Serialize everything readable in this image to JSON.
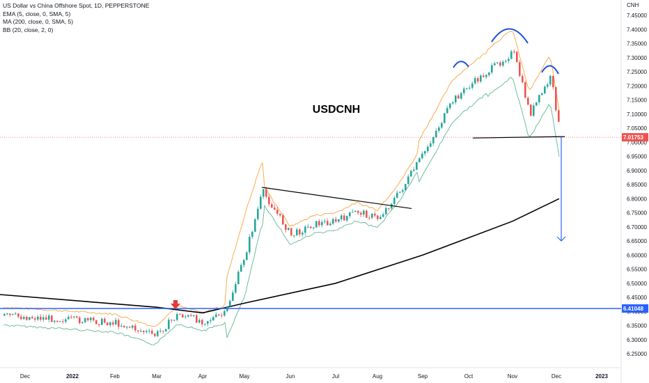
{
  "legend": {
    "title": "US Dollar vs China Offshore Spot, 1D, PEPPERSTONE",
    "lines": [
      "EMA (5, close, 0, SMA, 5)",
      "MA (200, close, 0, SMA, 5)",
      "BB (20, close, 2, 0)"
    ]
  },
  "chart_data": {
    "type": "candlestick",
    "title": "USDCNH",
    "currency": "CNH",
    "y_ticks": [
      "7.45000",
      "7.40000",
      "7.35000",
      "7.30000",
      "7.25000",
      "7.20000",
      "7.15000",
      "7.10000",
      "7.05000",
      "7.00000",
      "6.95000",
      "6.90000",
      "6.85000",
      "6.80000",
      "6.75000",
      "6.70000",
      "6.65000",
      "6.60000",
      "6.55000",
      "6.50000",
      "6.45000",
      "6.40000",
      "6.35000",
      "6.30000",
      "6.25000"
    ],
    "x_ticks": [
      "Dec",
      "2022",
      "Feb",
      "Mar",
      "Apr",
      "May",
      "Jun",
      "Jul",
      "Aug",
      "Sep",
      "Oct",
      "Nov",
      "Dec",
      "2023"
    ],
    "ylim": [
      6.225,
      7.475
    ],
    "last_price": "7.01753",
    "support_level": "6.41048",
    "close_path": [
      [
        "Dec",
        6.385
      ],
      [
        "2022",
        6.37
      ],
      [
        "Feb",
        6.36
      ],
      [
        "Mar",
        6.315
      ],
      [
        "Mar",
        6.39
      ],
      [
        "Apr",
        6.365
      ],
      [
        "Apr",
        6.39
      ],
      [
        "May",
        6.61
      ],
      [
        "May",
        6.825
      ],
      [
        "Jun",
        6.67
      ],
      [
        "Jun",
        6.71
      ],
      [
        "Jul",
        6.72
      ],
      [
        "Jul",
        6.755
      ],
      [
        "Aug",
        6.73
      ],
      [
        "Aug",
        6.83
      ],
      [
        "Sep",
        6.96
      ],
      [
        "Oct",
        7.15
      ],
      [
        "Oct",
        7.2
      ],
      [
        "Nov",
        7.32
      ],
      [
        "Nov",
        7.1
      ],
      [
        "Dec",
        7.23
      ],
      [
        "Dec",
        7.02
      ]
    ],
    "ma200": [
      [
        "Dec",
        6.46
      ],
      [
        "Mar",
        6.415
      ],
      [
        "Apr",
        6.395
      ],
      [
        "May",
        6.43
      ],
      [
        "Jul",
        6.5
      ],
      [
        "Sep",
        6.6
      ],
      [
        "Nov",
        6.72
      ],
      [
        "Dec",
        6.8
      ]
    ],
    "annotations": {
      "projection_target": 6.65,
      "neckline": [
        7.015,
        7.02
      ],
      "triangle_top": [
        6.84,
        6.765
      ]
    },
    "series": [
      {
        "name": "EMA",
        "color": "#f7931a"
      },
      {
        "name": "MA",
        "color": "#000000"
      },
      {
        "name": "BB",
        "color": "#4caf80"
      }
    ],
    "colors": {
      "up": "#26a69a",
      "down": "#ef5350",
      "support": "#2962ff",
      "arrow": "#2962ff",
      "marker": "#e53935",
      "pattern": "#1e4fe0"
    }
  }
}
